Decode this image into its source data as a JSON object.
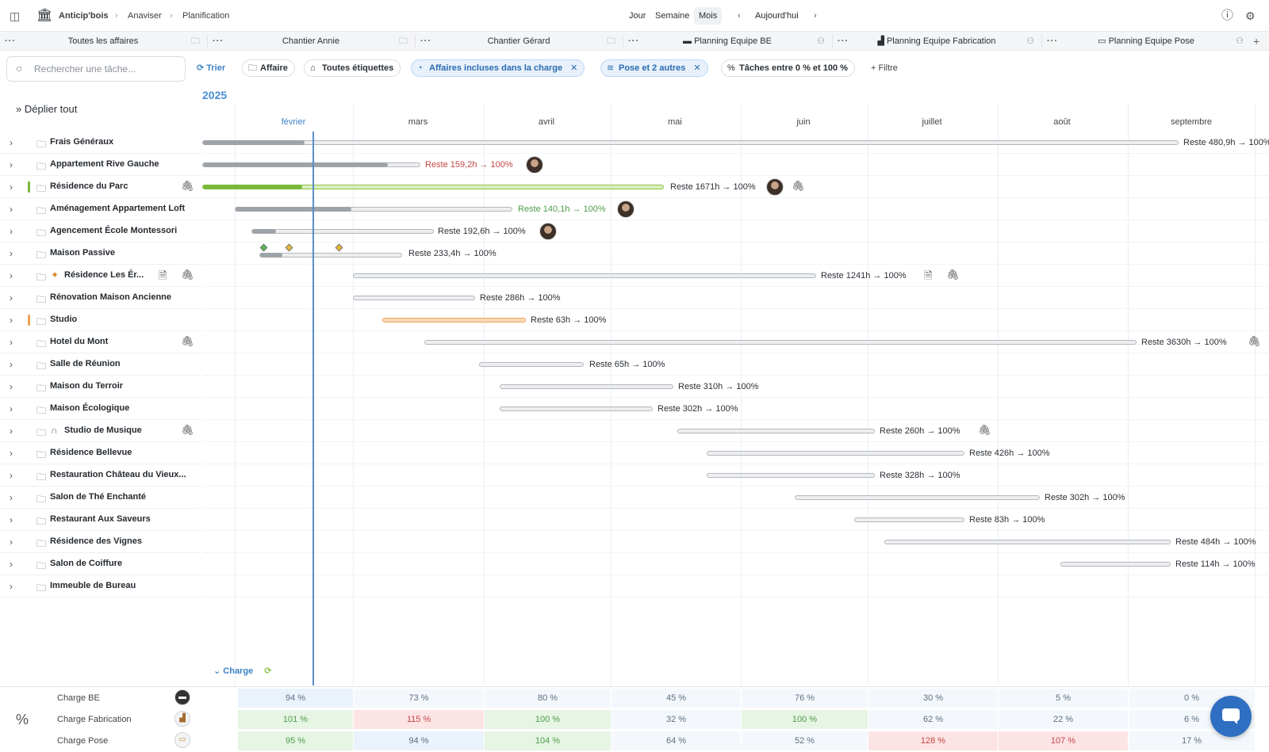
{
  "breadcrumb": {
    "app": "Anticip'bois",
    "level1": "Anaviser",
    "level2": "Planification"
  },
  "views": {
    "day": "Jour",
    "week": "Semaine",
    "month": "Mois",
    "today": "Aujourd'hui"
  },
  "tabs": [
    {
      "label": "Toutes les affaires",
      "icon": "folder-icon"
    },
    {
      "label": "Chantier Annie",
      "icon": "folder-icon"
    },
    {
      "label": "Chantier Gérard",
      "icon": "folder-icon"
    },
    {
      "label": "Planning Equipe BE",
      "icon": "user-icon"
    },
    {
      "label": "Planning Equipe Fabrication",
      "icon": "user-icon"
    },
    {
      "label": "Planning Equipe Pose",
      "icon": "user-icon"
    }
  ],
  "filters": {
    "search_placeholder": "Rechercher une tâche...",
    "sort": "Trier",
    "affaire": "Affaire",
    "tags": "Toutes étiquettes",
    "included": "Affaires incluses dans la charge",
    "pose": "Pose et 2 autres",
    "range": "Tâches entre 0 % et 100 %",
    "filter": "Filtre"
  },
  "year": "2025",
  "expand_all": "Déplier tout",
  "months": [
    "février",
    "mars",
    "avril",
    "mai",
    "juin",
    "juillet",
    "août",
    "septembre"
  ],
  "projects": [
    {
      "name": "Frais Généraux",
      "label": "Reste 480,9h → 100%"
    },
    {
      "name": "Appartement Rive Gauche",
      "label": "Reste 159,2h → 100%"
    },
    {
      "name": "Résidence du Parc",
      "label": "Reste 1671h → 100%"
    },
    {
      "name": "Aménagement Appartement Loft",
      "label": "Reste 140,1h → 100%"
    },
    {
      "name": "Agencement École Montessori",
      "label": "Reste 192,6h → 100%"
    },
    {
      "name": "Maison Passive",
      "label": "Reste 233,4h → 100%"
    },
    {
      "name": "Résidence Les Ér...",
      "label": "Reste 1241h → 100%"
    },
    {
      "name": "Rénovation Maison Ancienne",
      "label": "Reste 286h → 100%"
    },
    {
      "name": "Studio",
      "label": "Reste 63h → 100%"
    },
    {
      "name": "Hotel du Mont",
      "label": "Reste 3630h → 100%"
    },
    {
      "name": "Salle de Réunion",
      "label": "Reste 65h → 100%"
    },
    {
      "name": "Maison du Terroir",
      "label": "Reste 310h → 100%"
    },
    {
      "name": "Maison Écologique",
      "label": "Reste 302h → 100%"
    },
    {
      "name": "Studio de Musique",
      "label": "Reste 260h → 100%"
    },
    {
      "name": "Résidence Bellevue",
      "label": "Reste 426h → 100%"
    },
    {
      "name": "Restauration Château du Vieux...",
      "label": "Reste 328h → 100%"
    },
    {
      "name": "Salon de Thé Enchanté",
      "label": "Reste 302h → 100%"
    },
    {
      "name": "Restaurant Aux Saveurs",
      "label": "Reste 83h → 100%"
    },
    {
      "name": "Résidence des Vignes",
      "label": "Reste 484h → 100%"
    },
    {
      "name": "Salon de Coiffure",
      "label": "Reste 114h → 100%"
    },
    {
      "name": "Immeuble de Bureau",
      "label": ""
    }
  ],
  "charge": {
    "toggle": "Charge",
    "rows": [
      {
        "label": "Charge BE",
        "values": [
          "94 %",
          "73 %",
          "80 %",
          "45 %",
          "76 %",
          "30 %",
          "5 %",
          "0 %"
        ]
      },
      {
        "label": "Charge Fabrication",
        "values": [
          "101 %",
          "115 %",
          "100 %",
          "32 %",
          "100 %",
          "62 %",
          "22 %",
          "6 %"
        ]
      },
      {
        "label": "Charge Pose",
        "values": [
          "95 %",
          "94 %",
          "104 %",
          "64 %",
          "52 %",
          "128 %",
          "107 %",
          "17 %"
        ]
      }
    ]
  },
  "colors": {
    "accent": "#3b82c4",
    "green": "#7ab83a",
    "orange": "#f0a45c",
    "red": "#c24545",
    "over_load": "#fde4e4",
    "ok_load": "#e6f5e4",
    "low_load": "#eaf2fb"
  }
}
